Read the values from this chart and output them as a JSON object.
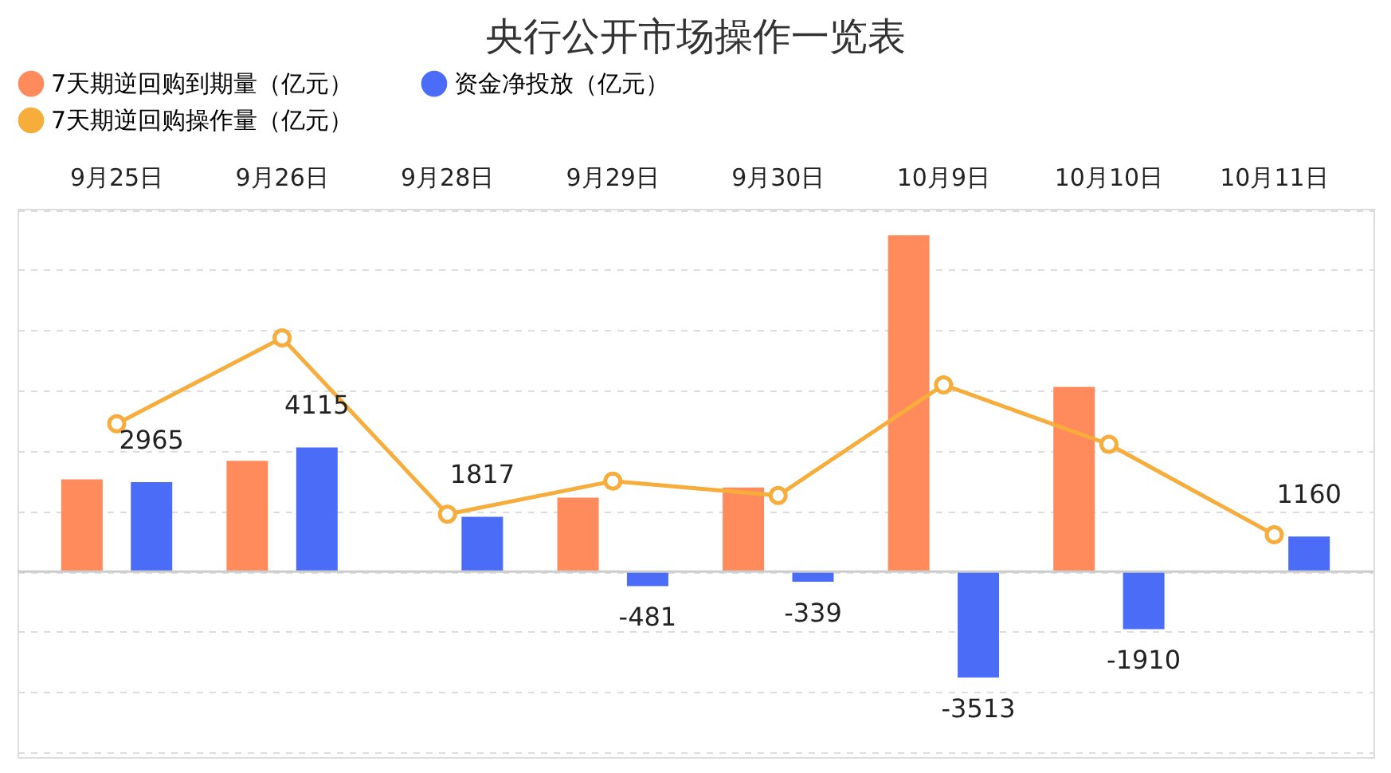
{
  "chart_data": {
    "type": "bar",
    "title": "央行公开市场操作一览表",
    "categories": [
      "9月25日",
      "9月26日",
      "9月28日",
      "9月29日",
      "9月30日",
      "10月9日",
      "10月10日",
      "10月11日"
    ],
    "series": [
      {
        "name": "7天期逆回购到期量（亿元）",
        "color": "#ff8a5c",
        "values": [
          3060,
          3670,
          null,
          2450,
          2790,
          11150,
          6120,
          null
        ]
      },
      {
        "name": "资金净投放（亿元）",
        "color": "#4a6cf7",
        "values": [
          2965,
          4115,
          1817,
          -481,
          -339,
          -3513,
          -1910,
          1160
        ],
        "data_labels": true
      },
      {
        "name": "7天期逆回购操作量（亿元）",
        "type": "line",
        "color": "#f6ad3c",
        "marker": "circle",
        "values": [
          4900,
          7750,
          1900,
          3000,
          2520,
          6190,
          4220,
          1220
        ]
      }
    ],
    "grid": "y",
    "legend": "top",
    "tick_labels": "x"
  }
}
